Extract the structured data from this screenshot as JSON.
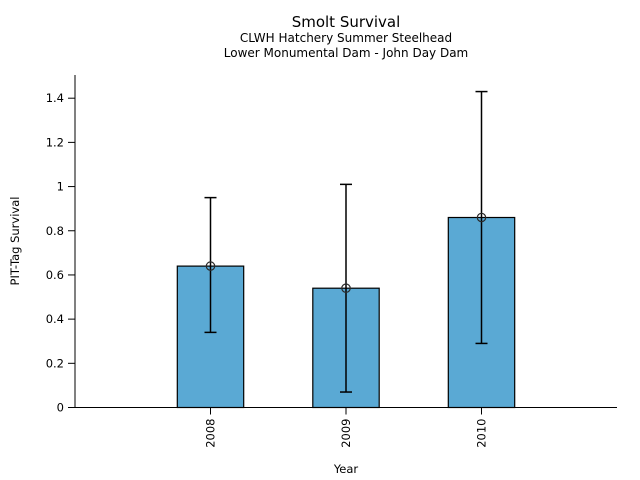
{
  "page": {
    "background": "#ffffff"
  },
  "chart_data": {
    "type": "bar",
    "title": "Smolt Survival",
    "subtitle1": "CLWH Hatchery Summer Steelhead",
    "subtitle2": "Lower Monumental Dam - John Day Dam",
    "xlabel": "Year",
    "ylabel": "PIT-Tag Survival",
    "categories": [
      "2008",
      "2009",
      "2010"
    ],
    "values": [
      0.64,
      0.54,
      0.86
    ],
    "error_low": [
      0.34,
      0.07,
      0.29
    ],
    "error_high": [
      0.95,
      1.01,
      1.43
    ],
    "yticks": [
      0,
      0.2,
      0.4,
      0.6,
      0.8,
      1,
      1.2,
      1.4
    ],
    "ytick_labels": [
      "0",
      "0.2",
      "0.4",
      "0.6",
      "0.8",
      "1",
      "1.2",
      "1.4"
    ],
    "ylim": [
      0,
      1.505
    ],
    "xlim": [
      -1,
      3
    ],
    "bar_width_fraction": 0.49,
    "bar_color": "#5AA9D4",
    "bar_edge_color": "#000000",
    "errorbar_color": "#000000",
    "marker": "open-circle",
    "marker_color": "#2a2a2a",
    "grid": false,
    "x_tick_label_rotation": -90
  }
}
